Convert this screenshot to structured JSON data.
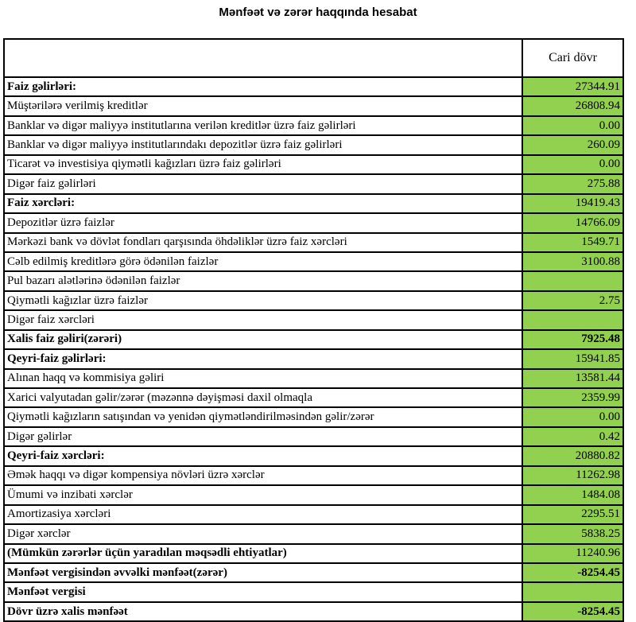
{
  "title": "Mənfəət və zərər haqqında hesabat",
  "colors": {
    "value_cell_bg": "#92d050",
    "border": "#000000"
  },
  "table": {
    "header": {
      "label_col": "",
      "period_label": "Cari dövr"
    },
    "rows": [
      {
        "label": "Faiz gəlirləri:",
        "value": "27344.91",
        "label_bold": true,
        "value_bold": false
      },
      {
        "label": "Müştərilərə verilmiş kreditlər",
        "value": "26808.94",
        "label_bold": false,
        "value_bold": false
      },
      {
        "label": "Banklar və digər maliyyə institutlarına verilən kreditlər üzrə faiz gəlirləri",
        "value": "0.00",
        "label_bold": false,
        "value_bold": false
      },
      {
        "label": "Banklar və digər maliyyə institutlarındakı depozitlər üzrə faiz gəlirləri",
        "value": "260.09",
        "label_bold": false,
        "value_bold": false
      },
      {
        "label": "Ticarət və investisiya qiymətli kağızları üzrə faiz gəlirləri",
        "value": "0.00",
        "label_bold": false,
        "value_bold": false
      },
      {
        "label": "Digər faiz gəlirləri",
        "value": "275.88",
        "label_bold": false,
        "value_bold": false
      },
      {
        "label": "Faiz xərcləri:",
        "value": "19419.43",
        "label_bold": true,
        "value_bold": false
      },
      {
        "label": "Depozitlər üzrə faizlər",
        "value": "14766.09",
        "label_bold": false,
        "value_bold": false
      },
      {
        "label": "Mərkəzi bank və dövlət fondları qarşısında öhdəliklər üzrə faiz xərcləri",
        "value": "1549.71",
        "label_bold": false,
        "value_bold": false
      },
      {
        "label": "Cəlb edilmiş kreditlərə görə ödənilən faizlər",
        "value": "3100.88",
        "label_bold": false,
        "value_bold": false
      },
      {
        "label": "Pul bazarı alətlərinə ödənilən faizlər",
        "value": "",
        "label_bold": false,
        "value_bold": false
      },
      {
        "label": "Qiymətli kağızlar üzrə faizlər",
        "value": "2.75",
        "label_bold": false,
        "value_bold": false
      },
      {
        "label": "Digər faiz xərcləri",
        "value": "",
        "label_bold": false,
        "value_bold": false
      },
      {
        "label": "Xalis faiz gəliri(zərəri)",
        "value": "7925.48",
        "label_bold": true,
        "value_bold": true
      },
      {
        "label": "Qeyri-faiz gəlirləri:",
        "value": "15941.85",
        "label_bold": true,
        "value_bold": false
      },
      {
        "label": "Alınan haqq və kommisiya gəliri",
        "value": "13581.44",
        "label_bold": false,
        "value_bold": false
      },
      {
        "label": "Xarici valyutadan gəlir/zərər (məzənnə dəyişməsi daxil olmaqla",
        "value": "2359.99",
        "label_bold": false,
        "value_bold": false
      },
      {
        "label": "Qiymətli kağızların satışından və yenidən qiymətləndirilməsindən gəlir/zərər",
        "value": "0.00",
        "label_bold": false,
        "value_bold": false
      },
      {
        "label": "Digər gəlirlər",
        "value": "0.42",
        "label_bold": false,
        "value_bold": false
      },
      {
        "label": "Qeyri-faiz xərcləri:",
        "value": "20880.82",
        "label_bold": true,
        "value_bold": false
      },
      {
        "label": "Əmək haqqı və digər kompensiya növləri üzrə xərclər",
        "value": "11262.98",
        "label_bold": false,
        "value_bold": false
      },
      {
        "label": "Ümumi və inzibati xərclər",
        "value": "1484.08",
        "label_bold": false,
        "value_bold": false
      },
      {
        "label": "Amortizasiya xərcləri",
        "value": "2295.51",
        "label_bold": false,
        "value_bold": false
      },
      {
        "label": "Digər xərclər",
        "value": "5838.25",
        "label_bold": false,
        "value_bold": false
      },
      {
        "label": "(Mümkün zərərlər üçün yaradılan məqsədli ehtiyatlar)",
        "value": "11240.96",
        "label_bold": true,
        "value_bold": false
      },
      {
        "label": "Mənfəət vergisindən əvvəlki mənfəət(zərər)",
        "value": "-8254.45",
        "label_bold": true,
        "value_bold": true
      },
      {
        "label": "Mənfəət vergisi",
        "value": "",
        "label_bold": true,
        "value_bold": false
      },
      {
        "label": "Dövr üzrə xalis mənfəət",
        "value": "-8254.45",
        "label_bold": true,
        "value_bold": true
      }
    ]
  }
}
